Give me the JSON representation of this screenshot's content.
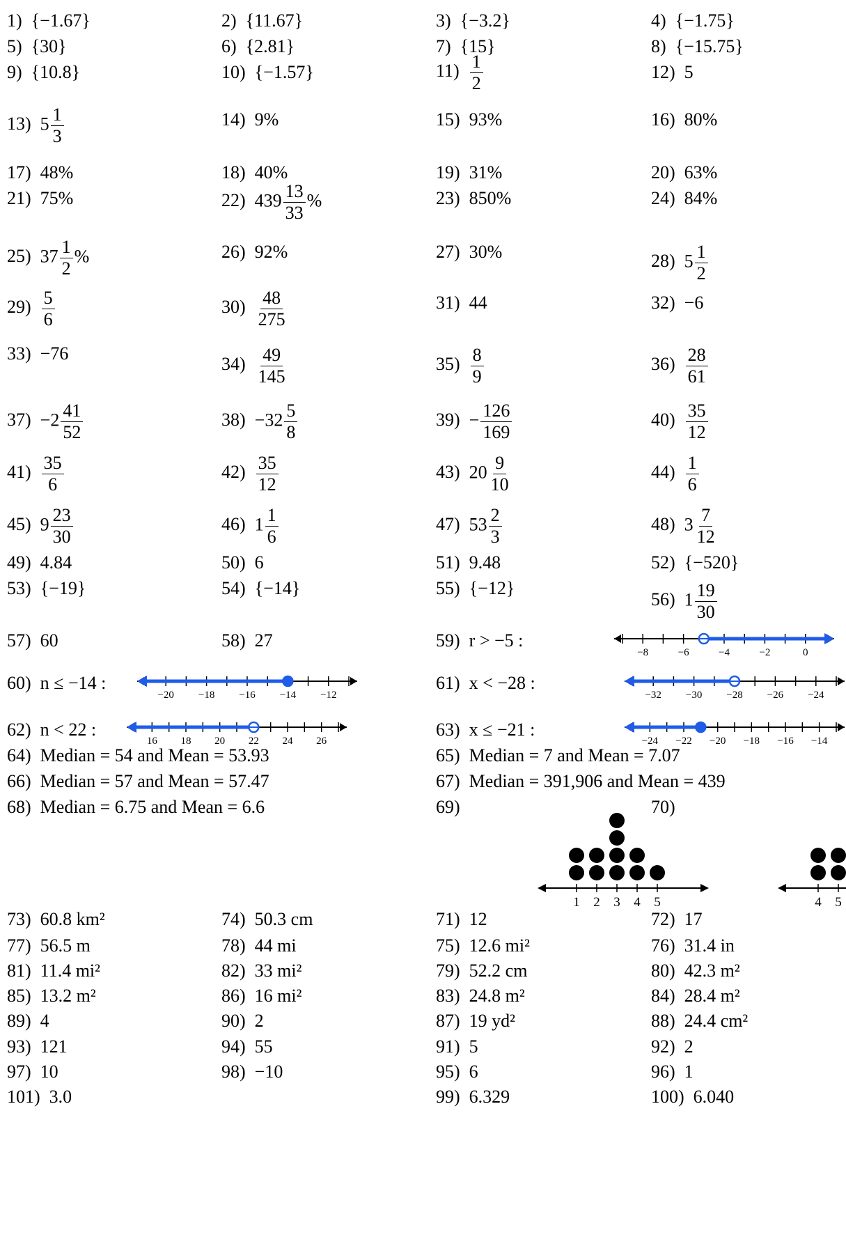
{
  "answers": [
    {
      "n": "1)",
      "t": "{−1.67}"
    },
    {
      "n": "2)",
      "t": "{11.67}"
    },
    {
      "n": "3)",
      "t": "{−3.2}"
    },
    {
      "n": "4)",
      "t": "{−1.75}"
    },
    {
      "n": "5)",
      "t": "{30}"
    },
    {
      "n": "6)",
      "t": "{2.81}"
    },
    {
      "n": "7)",
      "t": "{15}"
    },
    {
      "n": "8)",
      "t": "{−15.75}"
    },
    {
      "n": "9)",
      "t": "{10.8}"
    },
    {
      "n": "10)",
      "t": "{−1.57}"
    },
    {
      "n": "11)",
      "frac": {
        "n": "1",
        "d": "2"
      }
    },
    {
      "n": "12)",
      "t": "5"
    },
    {
      "n": "13)",
      "whole": "5",
      "frac": {
        "n": "1",
        "d": "3"
      }
    },
    {
      "n": "14)",
      "t": "9%"
    },
    {
      "n": "15)",
      "t": "93%"
    },
    {
      "n": "16)",
      "t": "80%"
    },
    {
      "n": "17)",
      "t": "48%"
    },
    {
      "n": "18)",
      "t": "40%"
    },
    {
      "n": "19)",
      "t": "31%"
    },
    {
      "n": "20)",
      "t": "63%"
    },
    {
      "n": "21)",
      "t": "75%"
    },
    {
      "n": "22)",
      "whole": "439",
      "frac": {
        "n": "13",
        "d": "33"
      },
      "suffix": "%"
    },
    {
      "n": "23)",
      "t": "850%"
    },
    {
      "n": "24)",
      "t": "84%"
    },
    {
      "n": "25)",
      "whole": "37",
      "frac": {
        "n": "1",
        "d": "2"
      },
      "suffix": "%"
    },
    {
      "n": "26)",
      "t": "92%"
    },
    {
      "n": "27)",
      "t": "30%"
    },
    {
      "n": "28)",
      "whole": "5",
      "frac": {
        "n": "1",
        "d": "2"
      }
    },
    {
      "n": "29)",
      "frac": {
        "n": "5",
        "d": "6"
      }
    },
    {
      "n": "30)",
      "frac": {
        "n": "48",
        "d": "275"
      }
    },
    {
      "n": "31)",
      "t": "44"
    },
    {
      "n": "32)",
      "t": "−6"
    },
    {
      "n": "33)",
      "t": "−76"
    },
    {
      "n": "34)",
      "frac": {
        "n": "49",
        "d": "145"
      }
    },
    {
      "n": "35)",
      "frac": {
        "n": "8",
        "d": "9"
      }
    },
    {
      "n": "36)",
      "frac": {
        "n": "28",
        "d": "61"
      }
    },
    {
      "n": "37)",
      "whole": "−2",
      "frac": {
        "n": "41",
        "d": "52"
      }
    },
    {
      "n": "38)",
      "whole": "−32",
      "frac": {
        "n": "5",
        "d": "8"
      }
    },
    {
      "n": "39)",
      "whole": "−",
      "frac": {
        "n": "126",
        "d": "169"
      }
    },
    {
      "n": "40)",
      "frac": {
        "n": "35",
        "d": "12"
      }
    },
    {
      "n": "41)",
      "frac": {
        "n": "35",
        "d": "6"
      }
    },
    {
      "n": "42)",
      "frac": {
        "n": "35",
        "d": "12"
      }
    },
    {
      "n": "43)",
      "whole": "20",
      "frac": {
        "n": "9",
        "d": "10"
      }
    },
    {
      "n": "44)",
      "frac": {
        "n": "1",
        "d": "6"
      }
    },
    {
      "n": "45)",
      "whole": "9",
      "frac": {
        "n": "23",
        "d": "30"
      }
    },
    {
      "n": "46)",
      "whole": "1",
      "frac": {
        "n": "1",
        "d": "6"
      }
    },
    {
      "n": "47)",
      "whole": "53",
      "frac": {
        "n": "2",
        "d": "3"
      }
    },
    {
      "n": "48)",
      "whole": "3",
      "frac": {
        "n": "7",
        "d": "12"
      }
    },
    {
      "n": "49)",
      "t": "4.84"
    },
    {
      "n": "50)",
      "t": "6"
    },
    {
      "n": "51)",
      "t": "9.48"
    },
    {
      "n": "52)",
      "t": "{−520}"
    },
    {
      "n": "53)",
      "t": "{−19}"
    },
    {
      "n": "54)",
      "t": "{−14}"
    },
    {
      "n": "55)",
      "t": "{−12}"
    },
    {
      "n": "56)",
      "whole": "1",
      "frac": {
        "n": "19",
        "d": "30"
      }
    },
    {
      "n": "57)",
      "t": "60"
    },
    {
      "n": "58)",
      "t": "27"
    },
    {
      "n": "59)",
      "t": "r > −5 :"
    },
    {
      "n": "60)",
      "t": "n ≤ −14 :"
    },
    {
      "n": "61)",
      "t": "x < −28 :"
    },
    {
      "n": "62)",
      "t": "n < 22 :"
    },
    {
      "n": "63)",
      "t": "x ≤ −21 :"
    },
    {
      "n": "64)",
      "t": "Median = 54 and Mean = 53.93"
    },
    {
      "n": "65)",
      "t": "Median = 7 and Mean = 7.07"
    },
    {
      "n": "66)",
      "t": "Median = 57 and Mean = 57.47"
    },
    {
      "n": "67)",
      "t": "Median = 391,906 and Mean = 439"
    },
    {
      "n": "68)",
      "t": "Median = 6.75 and Mean = 6.6"
    },
    {
      "n": "69)",
      "t": ""
    },
    {
      "n": "70)",
      "t": ""
    },
    {
      "n": "71)",
      "t": "12"
    },
    {
      "n": "72)",
      "t": "17"
    },
    {
      "n": "73)",
      "t": "60.8 km²"
    },
    {
      "n": "74)",
      "t": "50.3 cm"
    },
    {
      "n": "75)",
      "t": "12.6 mi²"
    },
    {
      "n": "76)",
      "t": "31.4 in"
    },
    {
      "n": "77)",
      "t": "56.5 m"
    },
    {
      "n": "78)",
      "t": "44 mi"
    },
    {
      "n": "79)",
      "t": "52.2 cm"
    },
    {
      "n": "80)",
      "t": "42.3 m²"
    },
    {
      "n": "81)",
      "t": "11.4 mi²"
    },
    {
      "n": "82)",
      "t": "33 mi²"
    },
    {
      "n": "83)",
      "t": "24.8 m²"
    },
    {
      "n": "84)",
      "t": "28.4 m²"
    },
    {
      "n": "85)",
      "t": "13.2 m²"
    },
    {
      "n": "86)",
      "t": "16 mi²"
    },
    {
      "n": "87)",
      "t": "19 yd²"
    },
    {
      "n": "88)",
      "t": "24.4 cm²"
    },
    {
      "n": "89)",
      "t": "4"
    },
    {
      "n": "90)",
      "t": "2"
    },
    {
      "n": "91)",
      "t": "5"
    },
    {
      "n": "92)",
      "t": "2"
    },
    {
      "n": "93)",
      "t": "121"
    },
    {
      "n": "94)",
      "t": "55"
    },
    {
      "n": "95)",
      "t": "6"
    },
    {
      "n": "96)",
      "t": "1"
    },
    {
      "n": "97)",
      "t": "10"
    },
    {
      "n": "98)",
      "t": "−10"
    },
    {
      "n": "99)",
      "t": "6.329"
    },
    {
      "n": "100)",
      "t": "6.040"
    },
    {
      "n": "101)",
      "t": "3.0"
    }
  ],
  "number_lines": [
    {
      "id": "59",
      "labels": [
        "−8",
        "−6",
        "−4",
        "−2",
        "0"
      ],
      "label_values": [
        -8,
        -6,
        -4,
        -2,
        0
      ],
      "min": -9,
      "max": 1,
      "point": -5,
      "closed": false,
      "direction": "right",
      "color": "#1f5ce8"
    },
    {
      "id": "60",
      "labels": [
        "−20",
        "−18",
        "−16",
        "−14",
        "−12"
      ],
      "label_values": [
        -20,
        -18,
        -16,
        -14,
        -12
      ],
      "min": -21,
      "max": -11,
      "point": -14,
      "closed": true,
      "direction": "left",
      "color": "#1f5ce8"
    },
    {
      "id": "61",
      "labels": [
        "−32",
        "−30",
        "−28",
        "−26",
        "−24"
      ],
      "label_values": [
        -32,
        -30,
        -28,
        -26,
        -24
      ],
      "min": -33,
      "max": -23,
      "point": -28,
      "closed": false,
      "direction": "left",
      "color": "#1f5ce8"
    },
    {
      "id": "62",
      "labels": [
        "16",
        "18",
        "20",
        "22",
        "24",
        "26"
      ],
      "label_values": [
        16,
        18,
        20,
        22,
        24,
        26
      ],
      "min": 15,
      "max": 27,
      "point": 22,
      "closed": false,
      "direction": "left",
      "color": "#1f5ce8"
    },
    {
      "id": "63",
      "labels": [
        "−24",
        "−22",
        "−20",
        "−18",
        "−16",
        "−14"
      ],
      "label_values": [
        -24,
        -22,
        -20,
        -18,
        -16,
        -14
      ],
      "min": -25,
      "max": -13,
      "point": -21,
      "closed": true,
      "direction": "left",
      "color": "#1f5ce8"
    }
  ],
  "dot_plots": [
    {
      "id": "69",
      "labels": [
        "1",
        "2",
        "3",
        "4",
        "5"
      ],
      "counts": [
        2,
        2,
        4,
        2,
        1
      ]
    },
    {
      "id": "70",
      "labels": [
        "4",
        "5"
      ],
      "counts": [
        2,
        2
      ]
    }
  ]
}
